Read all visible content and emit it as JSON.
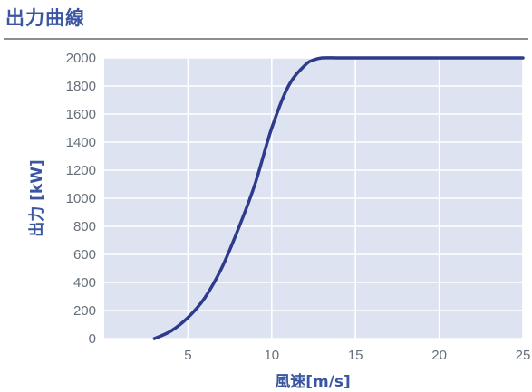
{
  "title": "出力曲線",
  "chart_data": {
    "type": "line",
    "title": "出力曲線",
    "xlabel": "風速[m/s]",
    "ylabel": "出力 [kW]",
    "xlim": [
      0,
      25
    ],
    "ylim": [
      0,
      2000
    ],
    "x_ticks": [
      5,
      10,
      15,
      20,
      25
    ],
    "y_ticks": [
      0,
      200,
      400,
      600,
      800,
      1000,
      1200,
      1400,
      1600,
      1800,
      2000
    ],
    "grid": true,
    "colors": {
      "background": "#dde3f1",
      "grid": "#ffffff",
      "line": "#2e3a8c",
      "text": "#3a56a0"
    },
    "series": [
      {
        "x": [
          3,
          4,
          5,
          6,
          7,
          8,
          9,
          10,
          11,
          12,
          12.5,
          13,
          14,
          15,
          20,
          25
        ],
        "y": [
          0,
          55,
          150,
          290,
          500,
          780,
          1100,
          1500,
          1800,
          1950,
          1985,
          2000,
          2000,
          2000,
          2000,
          2000
        ]
      }
    ]
  }
}
